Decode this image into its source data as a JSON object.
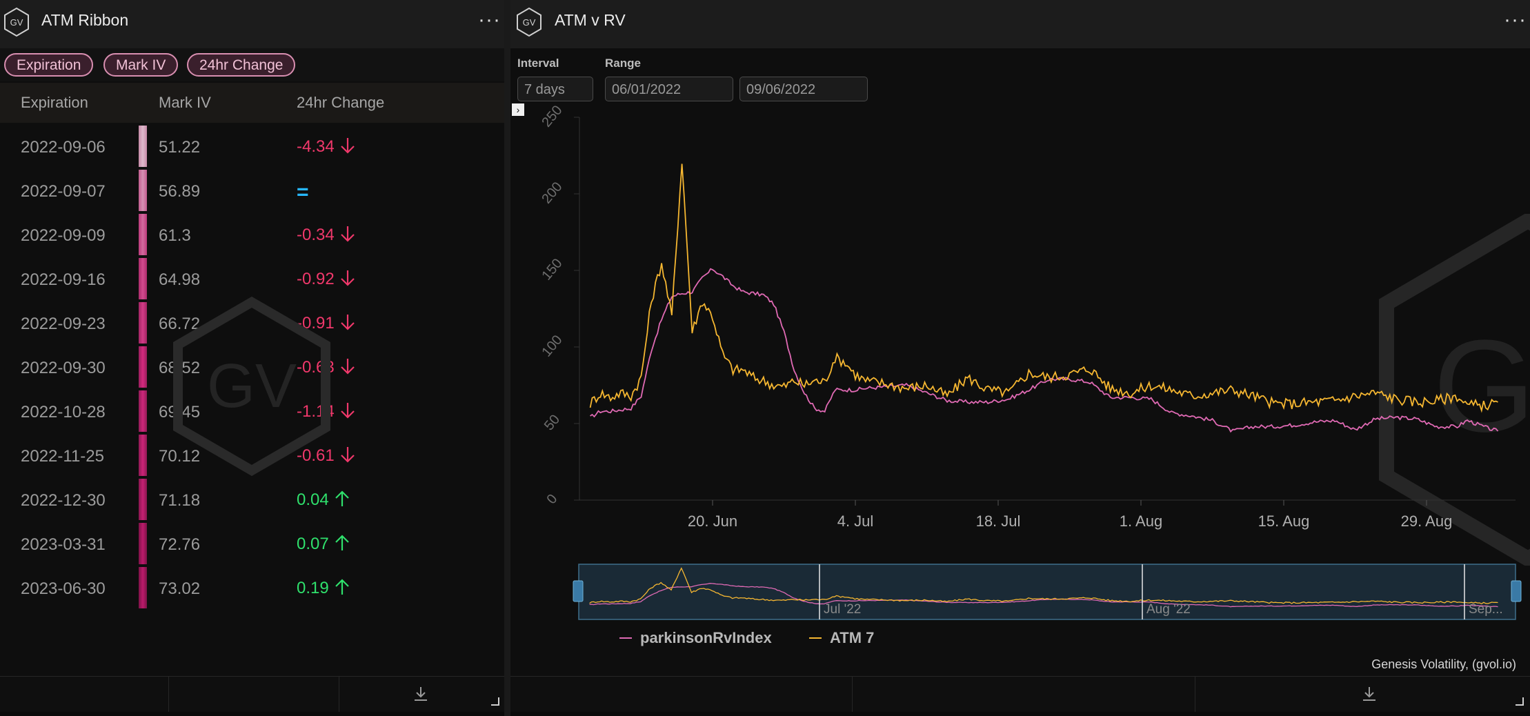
{
  "left_panel": {
    "title": "ATM Ribbon",
    "filters": [
      "Expiration",
      "Mark IV",
      "24hr Change"
    ],
    "columns": [
      "Expiration",
      "Mark IV",
      "24hr Change"
    ],
    "rows": [
      {
        "expiration": "2022-09-06",
        "mark_iv": "51.22",
        "change": "-4.34",
        "direction": "down"
      },
      {
        "expiration": "2022-09-07",
        "mark_iv": "56.89",
        "change": "=",
        "direction": "flat"
      },
      {
        "expiration": "2022-09-09",
        "mark_iv": "61.3",
        "change": "-0.34",
        "direction": "down"
      },
      {
        "expiration": "2022-09-16",
        "mark_iv": "64.98",
        "change": "-0.92",
        "direction": "down"
      },
      {
        "expiration": "2022-09-23",
        "mark_iv": "66.72",
        "change": "-0.91",
        "direction": "down"
      },
      {
        "expiration": "2022-09-30",
        "mark_iv": "68.52",
        "change": "-0.63",
        "direction": "down"
      },
      {
        "expiration": "2022-10-28",
        "mark_iv": "69.45",
        "change": "-1.14",
        "direction": "down"
      },
      {
        "expiration": "2022-11-25",
        "mark_iv": "70.12",
        "change": "-0.61",
        "direction": "down"
      },
      {
        "expiration": "2022-12-30",
        "mark_iv": "71.18",
        "change": "0.04",
        "direction": "up"
      },
      {
        "expiration": "2023-03-31",
        "mark_iv": "72.76",
        "change": "0.07",
        "direction": "up"
      },
      {
        "expiration": "2023-06-30",
        "mark_iv": "73.02",
        "change": "0.19",
        "direction": "up"
      }
    ],
    "watermark": "GV"
  },
  "right_panel": {
    "title": "ATM v RV",
    "interval_label": "Interval",
    "interval_value": "7 days",
    "range_label": "Range",
    "range_start": "06/01/2022",
    "range_end": "09/06/2022",
    "credit": "Genesis Volatility, (gvol.io)",
    "watermark": "GV",
    "navigator_labels": [
      "Jul '22",
      "Aug '22",
      "Sep..."
    ]
  },
  "colors": {
    "rv": "#e06ab4",
    "atm": "#f6b731",
    "negative": "#f0386b",
    "positive": "#2fe06c",
    "flat": "#27b7ff",
    "chip_border": "#d98fb1"
  },
  "chart_data": {
    "type": "line",
    "x_ticks": [
      "20. Jun",
      "4. Jul",
      "18. Jul",
      "1. Aug",
      "15. Aug",
      "29. Aug"
    ],
    "ylim": [
      0,
      250
    ],
    "y_ticks": [
      0,
      50,
      100,
      150,
      200,
      250
    ],
    "x_range": [
      "2022-06-08",
      "2022-09-05"
    ],
    "grid": false,
    "legend_position": "bottom-left",
    "series": [
      {
        "name": "parkinsonRvIndex",
        "color": "#e06ab4",
        "points": [
          [
            "2022-06-08",
            54
          ],
          [
            "2022-06-09",
            58
          ],
          [
            "2022-06-10",
            58
          ],
          [
            "2022-06-11",
            59
          ],
          [
            "2022-06-12",
            60
          ],
          [
            "2022-06-13",
            68
          ],
          [
            "2022-06-14",
            98
          ],
          [
            "2022-06-15",
            118
          ],
          [
            "2022-06-16",
            133
          ],
          [
            "2022-06-17",
            135
          ],
          [
            "2022-06-18",
            136
          ],
          [
            "2022-06-19",
            145
          ],
          [
            "2022-06-20",
            151
          ],
          [
            "2022-06-21",
            146
          ],
          [
            "2022-06-22",
            140
          ],
          [
            "2022-06-23",
            136
          ],
          [
            "2022-06-24",
            135
          ],
          [
            "2022-06-25",
            134
          ],
          [
            "2022-06-26",
            128
          ],
          [
            "2022-06-27",
            110
          ],
          [
            "2022-06-28",
            85
          ],
          [
            "2022-06-29",
            70
          ],
          [
            "2022-06-30",
            60
          ],
          [
            "2022-07-01",
            58
          ],
          [
            "2022-07-02",
            72
          ],
          [
            "2022-07-03",
            72
          ],
          [
            "2022-07-04",
            72
          ],
          [
            "2022-07-05",
            73
          ],
          [
            "2022-07-07",
            74
          ],
          [
            "2022-07-09",
            75
          ],
          [
            "2022-07-11",
            70
          ],
          [
            "2022-07-13",
            65
          ],
          [
            "2022-07-15",
            64
          ],
          [
            "2022-07-17",
            64
          ],
          [
            "2022-07-19",
            66
          ],
          [
            "2022-07-21",
            72
          ],
          [
            "2022-07-23",
            79
          ],
          [
            "2022-07-25",
            79
          ],
          [
            "2022-07-27",
            77
          ],
          [
            "2022-07-29",
            67
          ],
          [
            "2022-07-31",
            67
          ],
          [
            "2022-08-02",
            66
          ],
          [
            "2022-08-04",
            57
          ],
          [
            "2022-08-06",
            55
          ],
          [
            "2022-08-08",
            52
          ],
          [
            "2022-08-10",
            45
          ],
          [
            "2022-08-12",
            48
          ],
          [
            "2022-08-14",
            48
          ],
          [
            "2022-08-16",
            49
          ],
          [
            "2022-08-18",
            51
          ],
          [
            "2022-08-20",
            52
          ],
          [
            "2022-08-22",
            46
          ],
          [
            "2022-08-24",
            53
          ],
          [
            "2022-08-26",
            54
          ],
          [
            "2022-08-28",
            53
          ],
          [
            "2022-08-30",
            48
          ],
          [
            "2022-09-01",
            48
          ],
          [
            "2022-09-02",
            52
          ],
          [
            "2022-09-04",
            47
          ],
          [
            "2022-09-05",
            45
          ]
        ]
      },
      {
        "name": "ATM 7",
        "color": "#f6b731",
        "points": [
          [
            "2022-06-08",
            63
          ],
          [
            "2022-06-09",
            70
          ],
          [
            "2022-06-10",
            67
          ],
          [
            "2022-06-11",
            70
          ],
          [
            "2022-06-12",
            68
          ],
          [
            "2022-06-13",
            80
          ],
          [
            "2022-06-14",
            130
          ],
          [
            "2022-06-15",
            155
          ],
          [
            "2022-06-16",
            120
          ],
          [
            "2022-06-17",
            222
          ],
          [
            "2022-06-18",
            110
          ],
          [
            "2022-06-19",
            130
          ],
          [
            "2022-06-20",
            120
          ],
          [
            "2022-06-21",
            95
          ],
          [
            "2022-06-22",
            85
          ],
          [
            "2022-06-23",
            85
          ],
          [
            "2022-06-24",
            80
          ],
          [
            "2022-06-25",
            78
          ],
          [
            "2022-06-26",
            75
          ],
          [
            "2022-06-27",
            74
          ],
          [
            "2022-06-28",
            78
          ],
          [
            "2022-06-29",
            75
          ],
          [
            "2022-06-30",
            78
          ],
          [
            "2022-07-01",
            77
          ],
          [
            "2022-07-02",
            93
          ],
          [
            "2022-07-03",
            90
          ],
          [
            "2022-07-04",
            82
          ],
          [
            "2022-07-05",
            78
          ],
          [
            "2022-07-07",
            76
          ],
          [
            "2022-07-09",
            73
          ],
          [
            "2022-07-11",
            75
          ],
          [
            "2022-07-13",
            68
          ],
          [
            "2022-07-15",
            80
          ],
          [
            "2022-07-17",
            72
          ],
          [
            "2022-07-19",
            70
          ],
          [
            "2022-07-21",
            83
          ],
          [
            "2022-07-23",
            80
          ],
          [
            "2022-07-25",
            82
          ],
          [
            "2022-07-27",
            86
          ],
          [
            "2022-07-29",
            73
          ],
          [
            "2022-07-31",
            70
          ],
          [
            "2022-08-02",
            75
          ],
          [
            "2022-08-04",
            72
          ],
          [
            "2022-08-06",
            68
          ],
          [
            "2022-08-08",
            70
          ],
          [
            "2022-08-10",
            72
          ],
          [
            "2022-08-12",
            68
          ],
          [
            "2022-08-14",
            63
          ],
          [
            "2022-08-16",
            63
          ],
          [
            "2022-08-18",
            64
          ],
          [
            "2022-08-20",
            65
          ],
          [
            "2022-08-22",
            68
          ],
          [
            "2022-08-24",
            70
          ],
          [
            "2022-08-26",
            66
          ],
          [
            "2022-08-28",
            64
          ],
          [
            "2022-08-30",
            65
          ],
          [
            "2022-09-01",
            68
          ],
          [
            "2022-09-02",
            62
          ],
          [
            "2022-09-04",
            62
          ],
          [
            "2022-09-05",
            64
          ]
        ]
      }
    ]
  }
}
